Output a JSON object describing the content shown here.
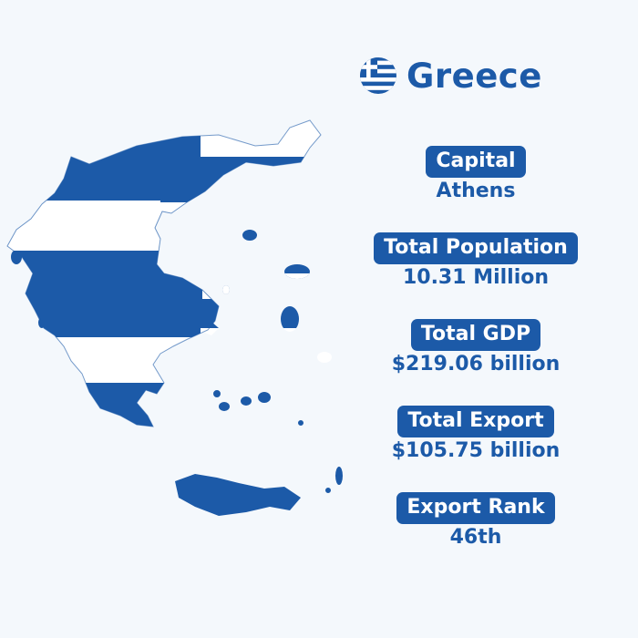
{
  "header": {
    "title": "Greece",
    "flag_icon": "greek-flag-icon"
  },
  "stats": [
    {
      "label": "Capital",
      "value": "Athens"
    },
    {
      "label": "Total Population",
      "value": "10.31 Million"
    },
    {
      "label": "Total GDP",
      "value": "$219.06 billion"
    },
    {
      "label": "Total Export",
      "value": "$105.75 billion"
    },
    {
      "label": "Export Rank",
      "value": "46th"
    }
  ],
  "colors": {
    "brand_blue": "#1c5aa8",
    "background": "#f4f8fc",
    "white": "#ffffff"
  }
}
